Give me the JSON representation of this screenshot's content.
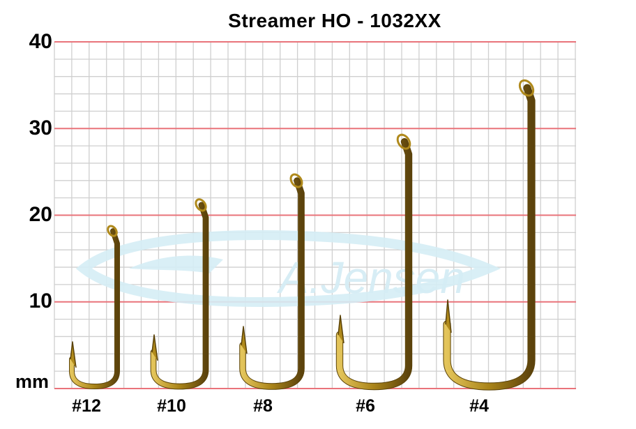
{
  "title": "Streamer HO - 1032XX",
  "watermark": "A.Jensen",
  "unit_label": "mm",
  "y_axis": {
    "ticks": [
      "40",
      "30",
      "20",
      "10"
    ],
    "range": [
      0,
      40
    ]
  },
  "hooks": [
    {
      "label": "#12",
      "length_mm": 18.5
    },
    {
      "label": "#10",
      "length_mm": 21.5
    },
    {
      "label": "#8",
      "length_mm": 24.3
    },
    {
      "label": "#6",
      "length_mm": 28.8
    },
    {
      "label": "#4",
      "length_mm": 35.0
    }
  ],
  "colors": {
    "major_grid": "#e9737a",
    "minor_grid": "#cfcfcf",
    "hook": "#b08a1c",
    "hook_dark": "#5a4208",
    "watermark": "#cfeaf3"
  }
}
